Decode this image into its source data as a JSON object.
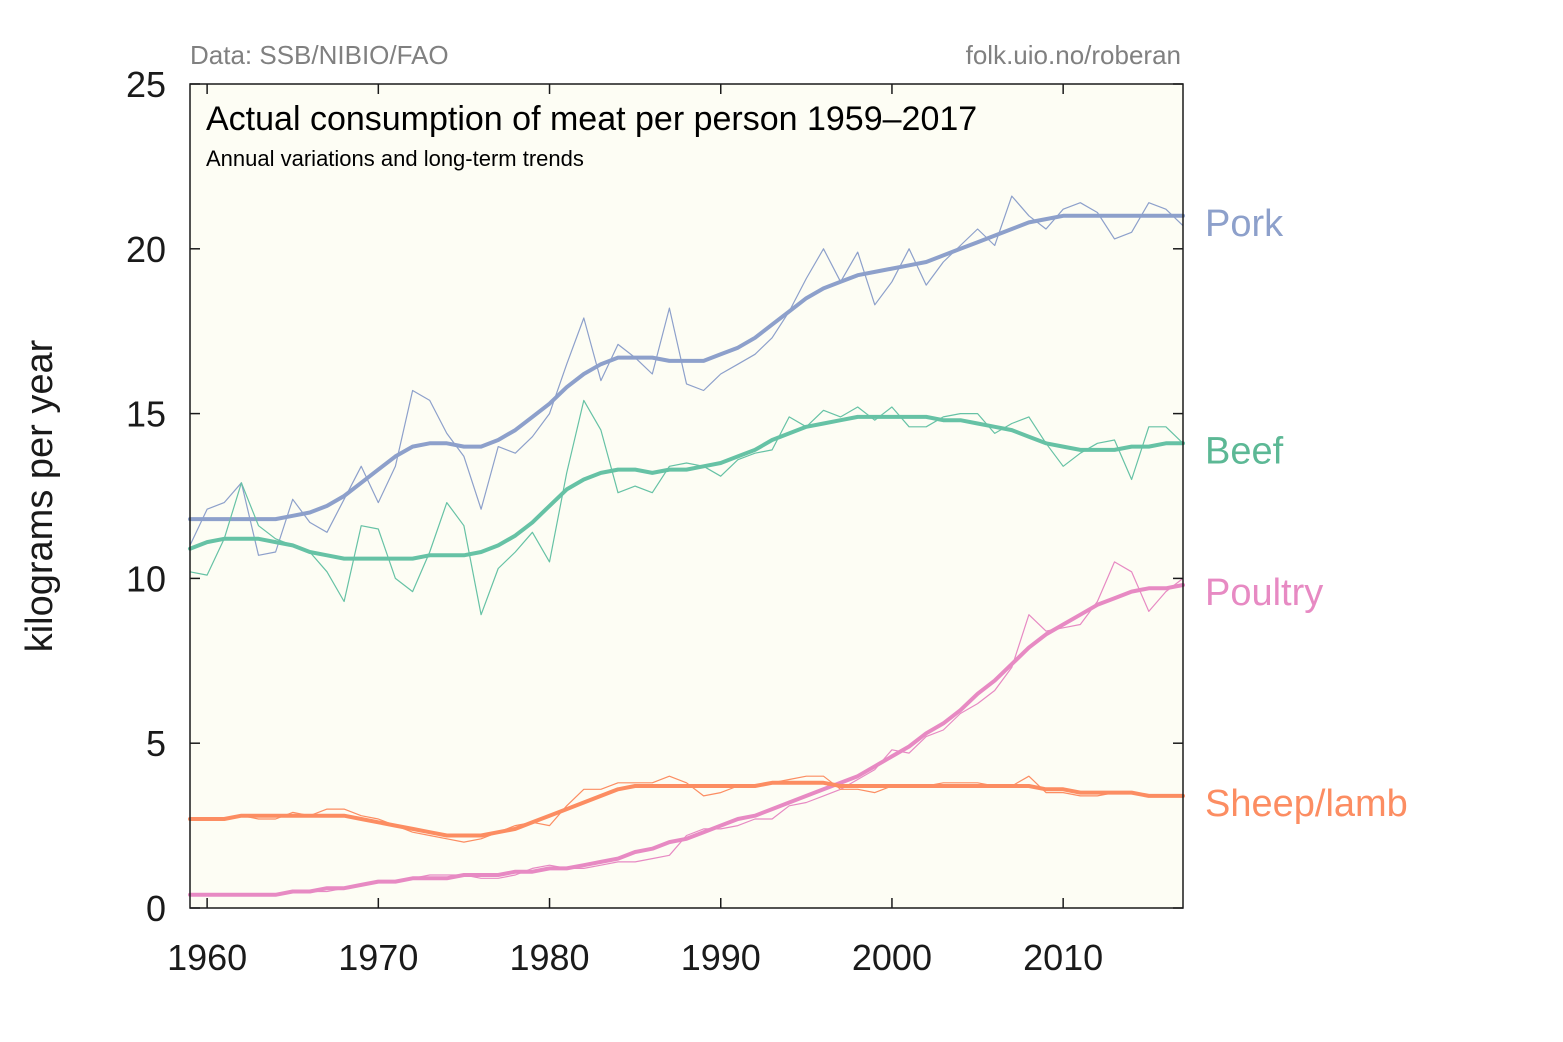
{
  "chart_data": {
    "type": "line",
    "title": "Actual consumption of meat per person 1959–2017",
    "subtitle": "Annual variations and long-term trends",
    "source_left": "Data: SSB/NIBIO/FAO",
    "source_right": "folk.uio.no/roberan",
    "ylabel": "kilograms per year",
    "xlabel": "",
    "xlim": [
      1959,
      2017
    ],
    "ylim": [
      0,
      25
    ],
    "xticks": [
      1960,
      1970,
      1980,
      1990,
      2000,
      2010
    ],
    "xtick_labels": [
      "1960",
      "1970",
      "1980",
      "1990",
      "2000",
      "2010"
    ],
    "yticks": [
      0,
      5,
      10,
      15,
      20,
      25
    ],
    "ytick_labels": [
      "0",
      "5",
      "10",
      "15",
      "20",
      "25"
    ],
    "grid": false,
    "background": "#fdfdf4",
    "legend": "direct labels at right end of lines",
    "years": [
      1959,
      1960,
      1961,
      1962,
      1963,
      1964,
      1965,
      1966,
      1967,
      1968,
      1969,
      1970,
      1971,
      1972,
      1973,
      1974,
      1975,
      1976,
      1977,
      1978,
      1979,
      1980,
      1981,
      1982,
      1983,
      1984,
      1985,
      1986,
      1987,
      1988,
      1989,
      1990,
      1991,
      1992,
      1993,
      1994,
      1995,
      1996,
      1997,
      1998,
      1999,
      2000,
      2001,
      2002,
      2003,
      2004,
      2005,
      2006,
      2007,
      2008,
      2009,
      2010,
      2011,
      2012,
      2013,
      2014,
      2015,
      2016,
      2017
    ],
    "series": [
      {
        "name": "Pork",
        "color": "#8da0cb",
        "annual": [
          11.0,
          12.1,
          12.3,
          12.9,
          10.7,
          10.8,
          12.4,
          11.7,
          11.4,
          12.4,
          13.4,
          12.3,
          13.4,
          15.7,
          15.4,
          14.4,
          13.7,
          12.1,
          14.0,
          13.8,
          14.3,
          15.0,
          16.5,
          17.9,
          16.0,
          17.1,
          16.7,
          16.2,
          18.2,
          15.9,
          15.7,
          16.2,
          16.5,
          16.8,
          17.3,
          18.1,
          19.1,
          20.0,
          19.0,
          19.9,
          18.3,
          19.0,
          20.0,
          18.9,
          19.6,
          20.1,
          20.6,
          20.1,
          21.6,
          21.0,
          20.6,
          21.2,
          21.4,
          21.1,
          20.3,
          20.5,
          21.4,
          21.2,
          20.7
        ],
        "trend": [
          11.8,
          11.8,
          11.8,
          11.8,
          11.8,
          11.8,
          11.9,
          12.0,
          12.2,
          12.5,
          12.9,
          13.3,
          13.7,
          14.0,
          14.1,
          14.1,
          14.0,
          14.0,
          14.2,
          14.5,
          14.9,
          15.3,
          15.8,
          16.2,
          16.5,
          16.7,
          16.7,
          16.7,
          16.6,
          16.6,
          16.6,
          16.8,
          17.0,
          17.3,
          17.7,
          18.1,
          18.5,
          18.8,
          19.0,
          19.2,
          19.3,
          19.4,
          19.5,
          19.6,
          19.8,
          20.0,
          20.2,
          20.4,
          20.6,
          20.8,
          20.9,
          21.0,
          21.0,
          21.0,
          21.0,
          21.0,
          21.0,
          21.0,
          21.0
        ]
      },
      {
        "name": "Beef",
        "color": "#66c2a5",
        "annual": [
          10.2,
          10.1,
          11.2,
          12.9,
          11.6,
          11.2,
          11.0,
          10.8,
          10.2,
          9.3,
          11.6,
          11.5,
          10.0,
          9.6,
          10.8,
          12.3,
          11.6,
          8.9,
          10.3,
          10.8,
          11.4,
          10.5,
          13.2,
          15.4,
          14.5,
          12.6,
          12.8,
          12.6,
          13.4,
          13.5,
          13.4,
          13.1,
          13.6,
          13.8,
          13.9,
          14.9,
          14.6,
          15.1,
          14.9,
          15.2,
          14.8,
          15.2,
          14.6,
          14.6,
          14.9,
          15.0,
          15.0,
          14.4,
          14.7,
          14.9,
          14.1,
          13.4,
          13.8,
          14.1,
          14.2,
          13.0,
          14.6,
          14.6,
          14.1
        ],
        "trend": [
          10.9,
          11.1,
          11.2,
          11.2,
          11.2,
          11.1,
          11.0,
          10.8,
          10.7,
          10.6,
          10.6,
          10.6,
          10.6,
          10.6,
          10.7,
          10.7,
          10.7,
          10.8,
          11.0,
          11.3,
          11.7,
          12.2,
          12.7,
          13.0,
          13.2,
          13.3,
          13.3,
          13.2,
          13.3,
          13.3,
          13.4,
          13.5,
          13.7,
          13.9,
          14.2,
          14.4,
          14.6,
          14.7,
          14.8,
          14.9,
          14.9,
          14.9,
          14.9,
          14.9,
          14.8,
          14.8,
          14.7,
          14.6,
          14.5,
          14.3,
          14.1,
          14.0,
          13.9,
          13.9,
          13.9,
          14.0,
          14.0,
          14.1,
          14.1
        ],
        "label_color": "#5cb895"
      },
      {
        "name": "Poultry",
        "color": "#e78ac3",
        "annual": [
          0.4,
          0.4,
          0.4,
          0.4,
          0.4,
          0.4,
          0.5,
          0.5,
          0.5,
          0.6,
          0.7,
          0.8,
          0.8,
          0.9,
          1.0,
          1.0,
          1.0,
          0.9,
          0.9,
          1.0,
          1.2,
          1.3,
          1.2,
          1.2,
          1.3,
          1.4,
          1.4,
          1.5,
          1.6,
          2.2,
          2.4,
          2.4,
          2.5,
          2.7,
          2.7,
          3.1,
          3.2,
          3.4,
          3.6,
          3.9,
          4.2,
          4.8,
          4.7,
          5.2,
          5.4,
          5.9,
          6.2,
          6.6,
          7.3,
          8.9,
          8.4,
          8.5,
          8.6,
          9.3,
          10.5,
          10.2,
          9.0,
          9.6,
          10.0
        ],
        "trend": [
          0.4,
          0.4,
          0.4,
          0.4,
          0.4,
          0.4,
          0.5,
          0.5,
          0.6,
          0.6,
          0.7,
          0.8,
          0.8,
          0.9,
          0.9,
          0.9,
          1.0,
          1.0,
          1.0,
          1.1,
          1.1,
          1.2,
          1.2,
          1.3,
          1.4,
          1.5,
          1.7,
          1.8,
          2.0,
          2.1,
          2.3,
          2.5,
          2.7,
          2.8,
          3.0,
          3.2,
          3.4,
          3.6,
          3.8,
          4.0,
          4.3,
          4.6,
          4.9,
          5.3,
          5.6,
          6.0,
          6.5,
          6.9,
          7.4,
          7.9,
          8.3,
          8.6,
          8.9,
          9.2,
          9.4,
          9.6,
          9.7,
          9.7,
          9.8
        ]
      },
      {
        "name": "Sheep/lamb",
        "color": "#fc8d62",
        "annual": [
          2.7,
          2.7,
          2.7,
          2.8,
          2.7,
          2.7,
          2.9,
          2.8,
          3.0,
          3.0,
          2.8,
          2.7,
          2.5,
          2.3,
          2.2,
          2.1,
          2.0,
          2.1,
          2.3,
          2.5,
          2.6,
          2.5,
          3.1,
          3.6,
          3.6,
          3.8,
          3.8,
          3.8,
          4.0,
          3.8,
          3.4,
          3.5,
          3.7,
          3.7,
          3.8,
          3.9,
          4.0,
          4.0,
          3.6,
          3.6,
          3.5,
          3.7,
          3.7,
          3.7,
          3.8,
          3.8,
          3.8,
          3.7,
          3.7,
          4.0,
          3.5,
          3.5,
          3.4,
          3.4,
          3.5,
          3.5,
          3.4,
          3.4,
          3.4
        ],
        "trend": [
          2.7,
          2.7,
          2.7,
          2.8,
          2.8,
          2.8,
          2.8,
          2.8,
          2.8,
          2.8,
          2.7,
          2.6,
          2.5,
          2.4,
          2.3,
          2.2,
          2.2,
          2.2,
          2.3,
          2.4,
          2.6,
          2.8,
          3.0,
          3.2,
          3.4,
          3.6,
          3.7,
          3.7,
          3.7,
          3.7,
          3.7,
          3.7,
          3.7,
          3.7,
          3.8,
          3.8,
          3.8,
          3.8,
          3.7,
          3.7,
          3.7,
          3.7,
          3.7,
          3.7,
          3.7,
          3.7,
          3.7,
          3.7,
          3.7,
          3.7,
          3.6,
          3.6,
          3.5,
          3.5,
          3.5,
          3.5,
          3.4,
          3.4,
          3.4
        ]
      }
    ]
  }
}
